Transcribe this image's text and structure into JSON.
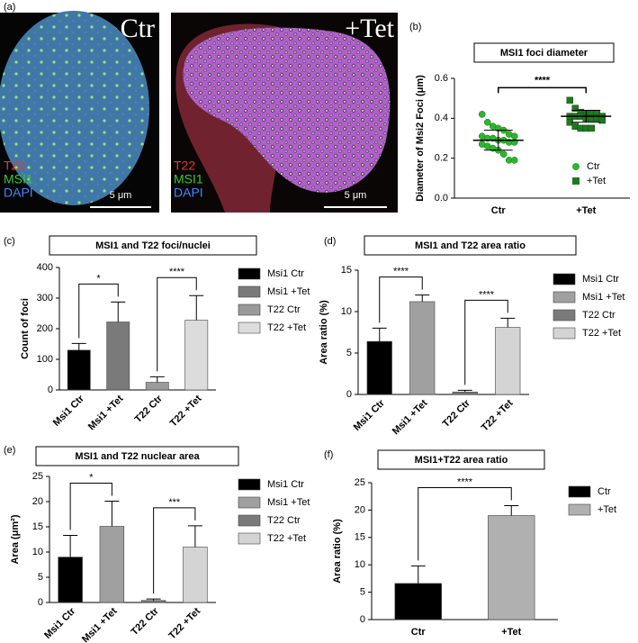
{
  "panel_a": {
    "label": "(a)",
    "images": [
      {
        "condition": "Ctr",
        "channels": [
          "T22",
          "MSI1",
          "DAPI"
        ],
        "scale_bar": "5 μm"
      },
      {
        "condition": "+Tet",
        "channels": [
          "T22",
          "MSI1",
          "DAPI"
        ],
        "scale_bar": "5 μm"
      }
    ]
  },
  "chart_data": [
    {
      "type": "strip",
      "panel": "(b)",
      "title": "MSI1 foci diameter",
      "ylabel": "Diameter of Msi2 Foci (μm)",
      "categories": [
        "Ctr",
        "+Tet"
      ],
      "series": [
        {
          "name": "Ctr",
          "color": "#2db52d",
          "marker": "circle",
          "mean": 0.29,
          "sd": 0.05,
          "values": [
            0.42,
            0.38,
            0.36,
            0.35,
            0.34,
            0.32,
            0.31,
            0.31,
            0.3,
            0.3,
            0.29,
            0.29,
            0.28,
            0.28,
            0.27,
            0.26,
            0.25,
            0.24,
            0.22,
            0.19,
            0.19
          ]
        },
        {
          "name": "+Tet",
          "color": "#1e7a1e",
          "marker": "square",
          "mean": 0.41,
          "sd": 0.03,
          "values": [
            0.49,
            0.45,
            0.43,
            0.42,
            0.42,
            0.42,
            0.41,
            0.41,
            0.41,
            0.41,
            0.4,
            0.4,
            0.4,
            0.39,
            0.38,
            0.36,
            0.35,
            0.35,
            0.35
          ]
        }
      ],
      "ylim": [
        0,
        0.6
      ],
      "yticks": [
        {
          "value": 0,
          "label": "0.0"
        },
        0.2,
        0.4,
        0.6
      ],
      "significance": [
        {
          "between": [
            0,
            1
          ],
          "label": "****"
        }
      ]
    },
    {
      "type": "bar",
      "panel": "(c)",
      "title": "MSI1 and T22  foci/nuclei",
      "ylabel": "Count of foci",
      "categories": [
        "Msi1 Ctr",
        "Msi1 +Tet",
        "T22 Ctr",
        "T22 +Tet"
      ],
      "values": [
        130,
        222,
        25,
        228
      ],
      "errors": [
        22,
        65,
        18,
        80
      ],
      "colors": [
        "#000000",
        "#7a7a7a",
        "#9a9a9a",
        "#dcdcdc"
      ],
      "ylim": [
        0,
        400
      ],
      "yticks": [
        0,
        100,
        200,
        300,
        400
      ],
      "significance": [
        {
          "between": [
            0,
            1
          ],
          "label": "*"
        },
        {
          "between": [
            2,
            3
          ],
          "label": "****"
        }
      ]
    },
    {
      "type": "bar",
      "panel": "(d)",
      "title": "MSI1 and T22 area ratio",
      "ylabel": "Area ratio (%)",
      "categories": [
        "Msi1 Ctr",
        "Msi1 +Tet",
        "T22 Ctr",
        "T22 +Tet"
      ],
      "values": [
        6.4,
        11.2,
        0.3,
        8.1
      ],
      "errors": [
        1.6,
        0.8,
        0.2,
        1.1
      ],
      "colors": [
        "#000000",
        "#a0a0a0",
        "#7a7a7a",
        "#d4d4d4"
      ],
      "ylim": [
        0,
        15
      ],
      "yticks": [
        0,
        5,
        10,
        15
      ],
      "significance": [
        {
          "between": [
            0,
            1
          ],
          "label": "****"
        },
        {
          "between": [
            2,
            3
          ],
          "label": "****"
        }
      ]
    },
    {
      "type": "bar",
      "panel": "(e)",
      "title": "MSI1 and T22  nuclear area",
      "ylabel": "Area  (μm²)",
      "categories": [
        "Msi1 Ctr",
        "Msi1 +Tet",
        "T22 Ctr",
        "T22 +Tet"
      ],
      "values": [
        9,
        15.1,
        0.4,
        11
      ],
      "errors": [
        4.3,
        5,
        0.3,
        4.2
      ],
      "colors": [
        "#000000",
        "#a0a0a0",
        "#7a7a7a",
        "#d4d4d4"
      ],
      "ylim": [
        0,
        25
      ],
      "yticks": [
        0,
        5,
        10,
        15,
        20,
        25
      ],
      "significance": [
        {
          "between": [
            0,
            1
          ],
          "label": "*"
        },
        {
          "between": [
            2,
            3
          ],
          "label": "***"
        }
      ]
    },
    {
      "type": "bar",
      "panel": "(f)",
      "title": "MSI1+T22 area ratio",
      "ylabel": "Area ratio (%)",
      "categories": [
        "Ctr",
        "+Tet"
      ],
      "values": [
        6.6,
        19
      ],
      "errors": [
        3.2,
        1.8
      ],
      "colors": [
        "#000000",
        "#b0b0b0"
      ],
      "ylim": [
        0,
        25
      ],
      "yticks": [
        0,
        5,
        10,
        15,
        20,
        25
      ],
      "significance": [
        {
          "between": [
            0,
            1
          ],
          "label": "****"
        }
      ]
    }
  ]
}
